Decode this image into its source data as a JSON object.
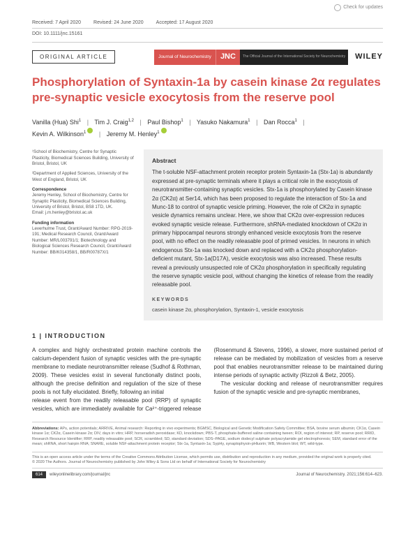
{
  "check_updates": "Check for updates",
  "meta": {
    "received": "Received: 7 April 2020",
    "revised": "Revised: 24 June 2020",
    "accepted": "Accepted: 17 August 2020",
    "doi": "DOI: 10.1111/jnc.15161"
  },
  "article_type": "ORIGINAL ARTICLE",
  "brand": {
    "journal": "Journal of Neurochemistry",
    "jnc": "JNC",
    "sub": "The Official Journal of the International Society for Neurochemistry",
    "wiley": "WILEY"
  },
  "title": "Phosphorylation of Syntaxin-1a by casein kinase 2α regulates pre-synaptic vesicle exocytosis from the reserve pool",
  "authors": {
    "a1": "Vanilla (Hua) Shi",
    "s1": "1",
    "a2": "Tim J. Craig",
    "s2": "1,2",
    "a3": "Paul Bishop",
    "s3": "1",
    "a4": "Yasuko Nakamura",
    "s4": "1",
    "a5": "Dan Rocca",
    "s5": "1",
    "a6": "Kevin A. Wilkinson",
    "s6": "1",
    "a7": "Jeremy M. Henley",
    "s7": "1"
  },
  "affil": {
    "a1": "¹School of Biochemistry, Centre for Synaptic Plasticity, Biomedical Sciences Building, University of Bristol, Bristol, UK",
    "a2": "²Department of Applied Sciences, University of the West of England, Bristol, UK",
    "corr_label": "Correspondence",
    "corr": "Jeremy Henley, School of Biochemistry, Centre for Synaptic Plasticity, Biomedical Sciences Building, University of Bristol, Bristol, BS8 1TD, UK.",
    "email": "Email: j.m.henley@bristol.ac.uk",
    "fund_label": "Funding information",
    "fund": "Leverhulme Trust, Grant/Award Number: RPG-2019-191; Medical Research Council, Grant/Award Number: MR/L003791/1; Biotechnology and Biological Sciences Research Council, Grant/Award Number: BB/K014358/1, BB/R00787X/1"
  },
  "abstract": {
    "heading": "Abstract",
    "text": "The t-soluble NSF-attachment protein receptor protein Syntaxin-1a (Stx-1a) is abundantly expressed at pre-synaptic terminals where it plays a critical role in the exocytosis of neurotransmitter-containing synaptic vesicles. Stx-1a is phosphorylated by Casein kinase 2α (CK2α) at Ser14, which has been proposed to regulate the interaction of Stx-1a and Munc-18 to control of synaptic vesicle priming. However, the role of CK2α in synaptic vesicle dynamics remains unclear. Here, we show that CK2α over-expression reduces evoked synaptic vesicle release. Furthermore, shRNA-mediated knockdown of CK2α in primary hippocampal neurons strongly enhanced vesicle exocytosis from the reserve pool, with no effect on the readily releasable pool of primed vesicles. In neurons in which endogenous Stx-1a was knocked down and replaced with a CK2α phosphorylation-deficient mutant, Stx-1a(D17A), vesicle exocytosis was also increased. These results reveal a previously unsuspected role of CK2α phosphorylation in specifically regulating the reserve synaptic vesicle pool, without changing the kinetics of release from the readily releasable pool.",
    "kw_label": "KEYWORDS",
    "keywords": "casein kinase 2α, phosphorylation, Syntaxin-1, vesicle exocytosis"
  },
  "intro": {
    "heading": "1 | INTRODUCTION",
    "p1": "A complex and highly orchestrated protein machine controls the calcium-dependent fusion of synaptic vesicles with the pre-synaptic membrane to mediate neurotransmitter release (Sudhof & Rothman, 2009). These vesicles exist in several functionally distinct pools, although the precise definition and regulation of the size of these pools is not fully elucidated. Briefly, following an initial",
    "p2": "release event from the readily releasable pool (RRP) of synaptic vesicles, which are immediately available for Ca²⁺-triggered release (Rosenmund & Stevens, 1996), a slower, more sustained period of release can be mediated by mobilization of vesicles from a reserve pool that enables neurotransmitter release to be maintained during intense periods of synaptic activity (Rizzoli & Betz, 2005).",
    "p3": "The vesicular docking and release of neurotransmitter requires fusion of the synaptic vesicle and pre-synaptic membranes,"
  },
  "abbrev": {
    "label": "Abbreviations:",
    "text": "APs, action potentials; ARRIVE, Animal research: Reporting in vivo experiments; BGMSC, Biological and Genetic Modification Safety Committee; BSA, bovine serum albumin; CK1α, Casein kinase 1α; CK2α, Casein kinase 2α; DIV, days in vitro; HRP, horseradish peroxidase; KD, knockdown; PBS-T, phosphate-buffered saline containing tween; ROI, region of interest; RP, reserve pool; RRID, Research Resource Identifier; RRP, readily releasable pool; SCR, scrambled; SD, standard deviation; SDS–PAGE, sodium dodecyl sulphate polyacrylamide gel electrophoresis; SEM, standard error of the mean; shRNA, short hairpin RNA; SNARE, soluble NSF-attachment protein receptor; Stx-1a, Syntaxin-1a; SypHy, synaptophysin-pHluorin; WB, Western blot; WT, wild-type."
  },
  "legal": {
    "l1": "This is an open access article under the terms of the Creative Commons Attribution License, which permits use, distribution and reproduction in any medium, provided the original work is properly cited.",
    "l2": "© 2020 The Authors. Journal of Neurochemistry published by John Wiley & Sons Ltd on behalf of International Society for Neurochemistry"
  },
  "footer": {
    "page": "614",
    "url": "wileyonlinelibrary.com/journal/jnc",
    "cite": "Journal of Neurochemistry. 2021;156:614–623."
  }
}
